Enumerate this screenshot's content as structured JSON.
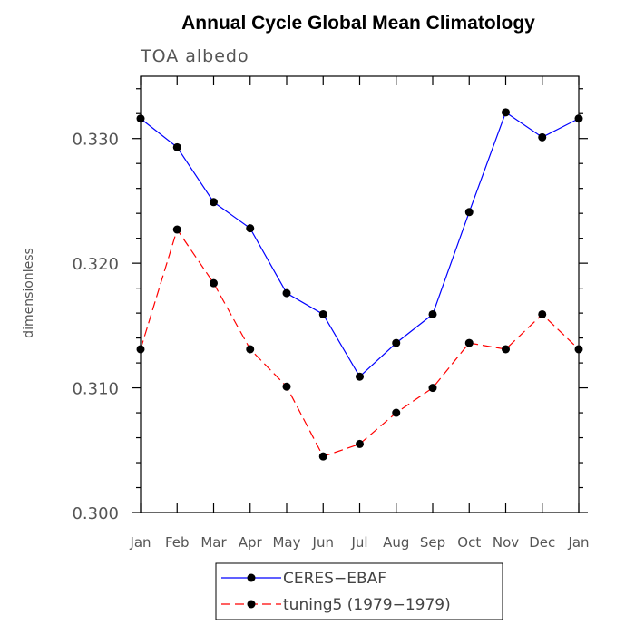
{
  "chart_data": {
    "type": "line",
    "title": "Annual Cycle Global Mean Climatology",
    "subtitle": "TOA albedo",
    "xlabel": "",
    "ylabel": "dimensionless",
    "categories": [
      "Jan",
      "Feb",
      "Mar",
      "Apr",
      "May",
      "Jun",
      "Jul",
      "Aug",
      "Sep",
      "Oct",
      "Nov",
      "Dec",
      "Jan"
    ],
    "ylim": [
      0.3,
      0.335
    ],
    "yticks": [
      "0.300",
      "0.310",
      "0.320",
      "0.330"
    ],
    "series": [
      {
        "name": "CERES−EBAF",
        "color": "#0000ff",
        "dash": "solid",
        "values": [
          0.3316,
          0.3293,
          0.3249,
          0.3228,
          0.3176,
          0.3159,
          0.3109,
          0.3136,
          0.3159,
          0.3241,
          0.3321,
          0.3301,
          0.3316
        ]
      },
      {
        "name": "tuning5 (1979−1979)",
        "color": "#ff0000",
        "dash": "dashed",
        "values": [
          0.3131,
          0.3227,
          0.3184,
          0.3131,
          0.3101,
          0.3045,
          0.3055,
          0.308,
          0.31,
          0.3136,
          0.3131,
          0.3159,
          0.3131
        ]
      }
    ],
    "legend_position": "bottom"
  }
}
